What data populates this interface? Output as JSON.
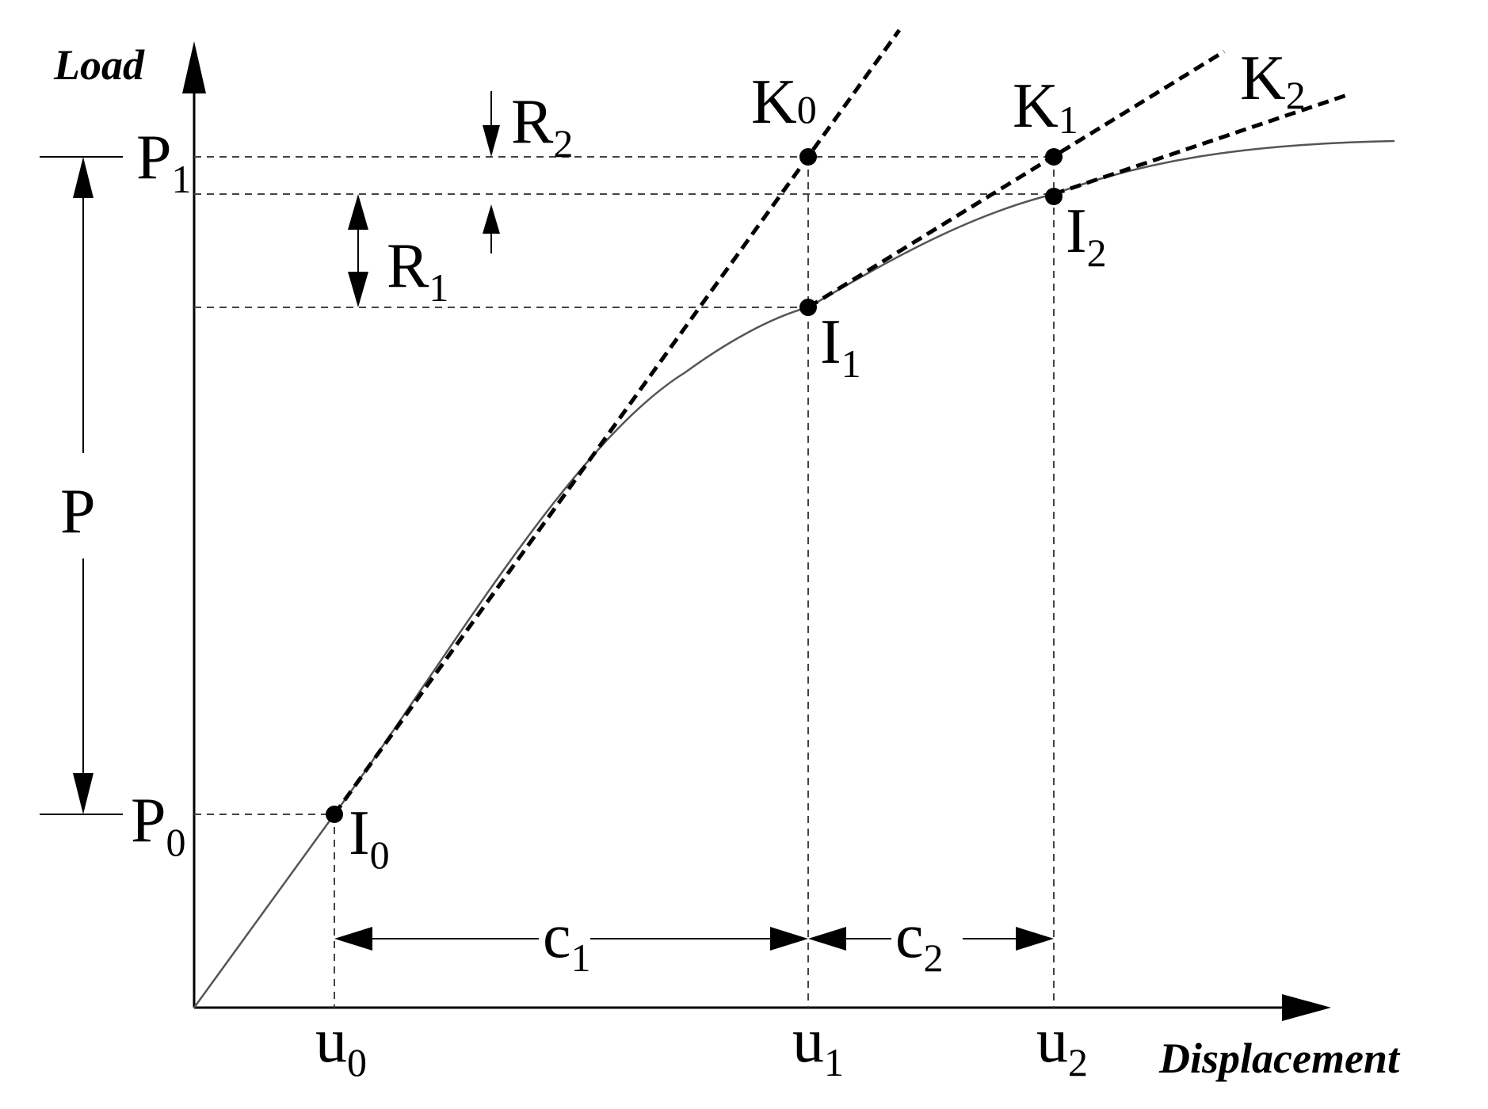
{
  "axes": {
    "y_title": "Load",
    "x_title": "Displacement"
  },
  "load_levels": {
    "p0": {
      "main": "P",
      "sub": "0"
    },
    "p1": {
      "main": "P",
      "sub": "1"
    },
    "p_span": "P"
  },
  "displacements": {
    "u0": {
      "main": "u",
      "sub": "0"
    },
    "u1": {
      "main": "u",
      "sub": "1"
    },
    "u2": {
      "main": "u",
      "sub": "2"
    }
  },
  "points": {
    "i0": {
      "main": "I",
      "sub": "0"
    },
    "i1": {
      "main": "I",
      "sub": "1"
    },
    "i2": {
      "main": "I",
      "sub": "2"
    },
    "k0": {
      "main": "K",
      "sub": "0"
    },
    "k1": {
      "main": "K",
      "sub": "1"
    },
    "k2": {
      "main": "K",
      "sub": "2"
    }
  },
  "intervals": {
    "c1": {
      "main": "c",
      "sub": "1"
    },
    "c2": {
      "main": "c",
      "sub": "2"
    },
    "r1": {
      "main": "R",
      "sub": "1"
    },
    "r2": {
      "main": "R",
      "sub": "2"
    }
  }
}
